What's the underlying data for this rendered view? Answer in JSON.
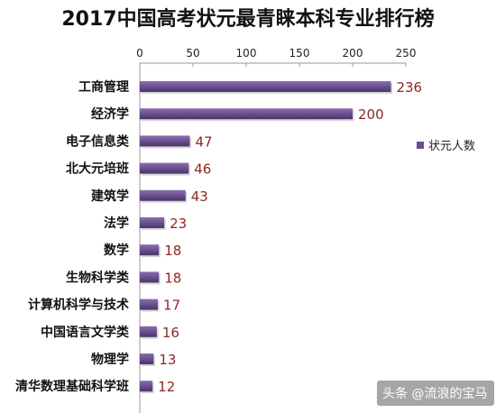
{
  "chart_data": {
    "type": "bar",
    "orientation": "horizontal",
    "title": "2017中国高考状元最青睐本科专业排行榜",
    "categories": [
      "工商管理",
      "经济学",
      "电子信息类",
      "北大元培班",
      "建筑学",
      "法学",
      "数学",
      "生物科学类",
      "计算机科学与技术",
      "中国语言文学类",
      "物理学",
      "清华数理基础科学班"
    ],
    "series": [
      {
        "name": "状元人数",
        "values": [
          236,
          200,
          47,
          46,
          43,
          23,
          18,
          18,
          17,
          16,
          13,
          12
        ]
      }
    ],
    "xlim": [
      0,
      250
    ],
    "xticks": [
      "0",
      "50",
      "100",
      "150",
      "200",
      "250"
    ],
    "legend_position": "right",
    "grid": false,
    "colors": {
      "bar": "#6b4f8f",
      "bar_dark": "#4a3568",
      "value_label": "#8b2a22",
      "legend_marker": "#6b4f8f"
    }
  },
  "watermark": "头条 @流浪的宝马"
}
